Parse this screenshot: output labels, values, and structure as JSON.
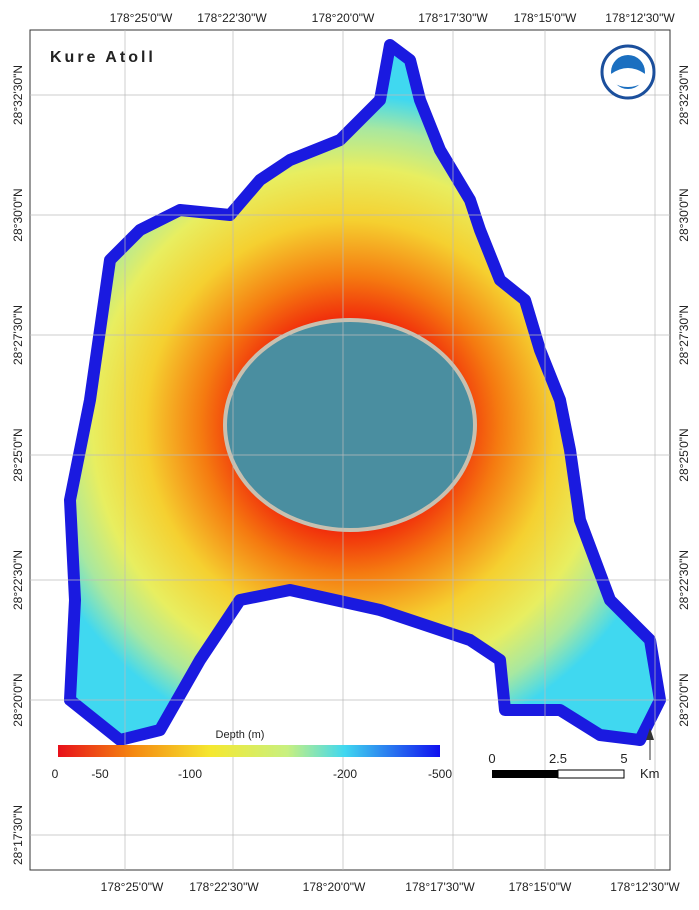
{
  "map": {
    "title": "Kure Atoll",
    "top_labels": [
      "178°25'0\"W",
      "178°22'30\"W",
      "178°20'0\"W",
      "178°17'30\"W",
      "178°15'0\"W",
      "178°12'30\"W"
    ],
    "bottom_labels": [
      "178°25'0\"W",
      "178°22'30\"W",
      "178°20'0\"W",
      "178°17'30\"W",
      "178°15'0\"W",
      "178°12'30\"W"
    ],
    "left_labels": [
      "28°32'30\"N",
      "28°30'0\"N",
      "28°27'30\"N",
      "28°25'0\"N",
      "28°22'30\"N",
      "28°20'0\"N",
      "28°17'30\"N"
    ],
    "right_labels": [
      "28°32'30\"N",
      "28°30'0\"N",
      "28°27'30\"N",
      "28°25'0\"N",
      "28°22'30\"N",
      "28°20'0\"N"
    ],
    "legend": {
      "title": "Depth (m)",
      "labels": [
        "0",
        "-50",
        "-100",
        "-200",
        "-500"
      ]
    },
    "scale_bar": {
      "labels": [
        "0",
        "2.5",
        "5"
      ],
      "unit": "Km"
    }
  }
}
